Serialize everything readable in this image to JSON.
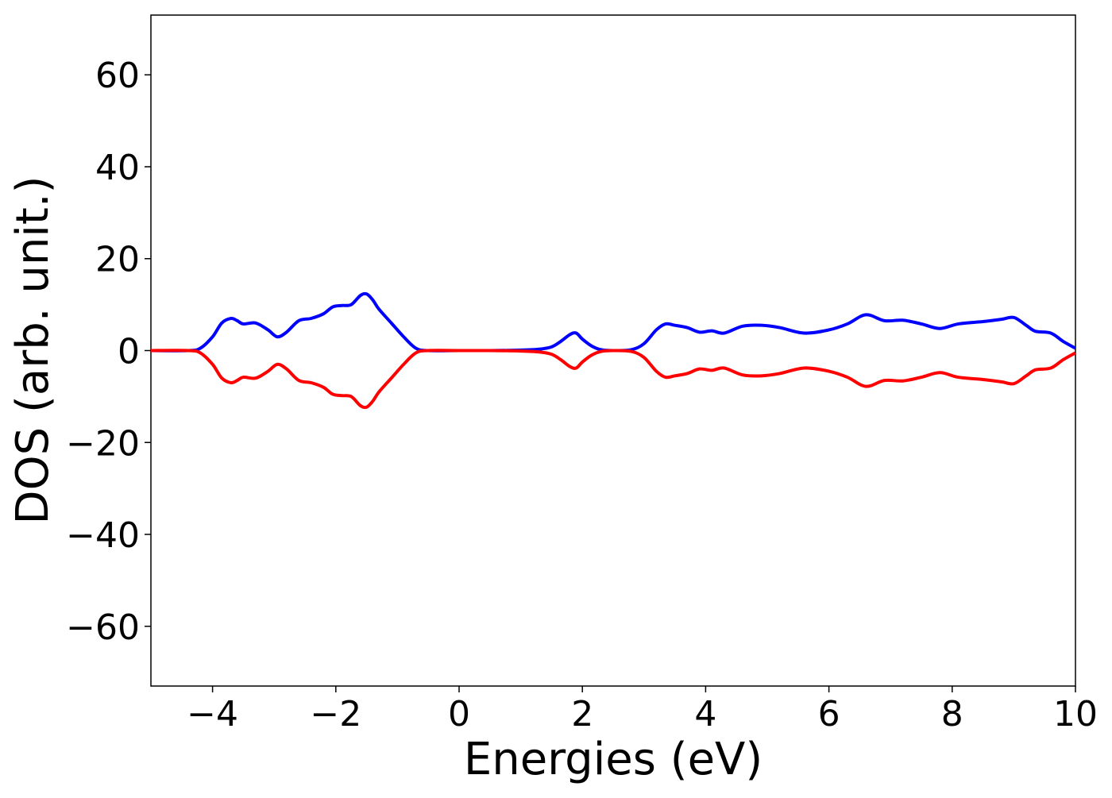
{
  "chart_data": {
    "type": "line",
    "title": "",
    "xlabel": "Energies (eV)",
    "ylabel": "DOS (arb. unit.)",
    "xlim": [
      -5,
      10
    ],
    "ylim": [
      -73,
      73
    ],
    "xticks": [
      -4,
      -2,
      0,
      2,
      4,
      6,
      8,
      10
    ],
    "xtick_labels": [
      "−4",
      "−2",
      "0",
      "2",
      "4",
      "6",
      "8",
      "10"
    ],
    "yticks": [
      60,
      40,
      20,
      0,
      -20,
      -40,
      -60
    ],
    "ytick_labels": [
      "60",
      "40",
      "20",
      "0",
      "−20",
      "−40",
      "−60"
    ],
    "grid": false,
    "legend": "none",
    "series": [
      {
        "color": "#0000ff",
        "x": [
          -5,
          -4.4,
          -4.2,
          -4.0,
          -3.85,
          -3.7,
          -3.6,
          -3.5,
          -3.3,
          -3.1,
          -2.95,
          -2.8,
          -2.6,
          -2.4,
          -2.2,
          -2.05,
          -1.9,
          -1.75,
          -1.6,
          -1.5,
          -1.4,
          -1.3,
          -1.1,
          -0.9,
          -0.7,
          -0.5,
          0,
          0.5,
          1.0,
          1.3,
          1.5,
          1.65,
          1.8,
          1.9,
          2.0,
          2.15,
          2.3,
          2.5,
          2.8,
          3.0,
          3.2,
          3.35,
          3.5,
          3.7,
          3.9,
          4.1,
          4.3,
          4.6,
          4.9,
          5.2,
          5.6,
          6.0,
          6.3,
          6.6,
          6.9,
          7.2,
          7.5,
          7.8,
          8.1,
          8.5,
          8.8,
          9.0,
          9.2,
          9.35,
          9.6,
          9.8,
          10.0
        ],
        "y": [
          0,
          0,
          0.5,
          3,
          6,
          7,
          6.5,
          5.8,
          6,
          4.5,
          3,
          4,
          6.5,
          7,
          8,
          9.5,
          9.8,
          10,
          12,
          12.3,
          11,
          9,
          6,
          3,
          0.5,
          0,
          0,
          0,
          0.1,
          0.3,
          0.8,
          2,
          3.5,
          3.8,
          2.5,
          1,
          0.2,
          0,
          0.2,
          1.5,
          4.5,
          5.8,
          5.5,
          5,
          4,
          4.3,
          3.8,
          5.3,
          5.5,
          5,
          3.8,
          4.5,
          5.8,
          7.8,
          6.5,
          6.6,
          5.8,
          4.8,
          5.8,
          6.3,
          6.8,
          7.2,
          5.5,
          4.2,
          3.8,
          2,
          0.5
        ]
      },
      {
        "color": "#ff0000",
        "x": [
          -5,
          -4.4,
          -4.2,
          -4.0,
          -3.85,
          -3.7,
          -3.6,
          -3.5,
          -3.3,
          -3.1,
          -2.95,
          -2.8,
          -2.6,
          -2.4,
          -2.2,
          -2.05,
          -1.9,
          -1.75,
          -1.6,
          -1.5,
          -1.4,
          -1.3,
          -1.1,
          -0.9,
          -0.7,
          -0.5,
          0,
          0.5,
          1.0,
          1.3,
          1.5,
          1.65,
          1.8,
          1.9,
          2.0,
          2.15,
          2.3,
          2.5,
          2.8,
          3.0,
          3.2,
          3.35,
          3.5,
          3.7,
          3.9,
          4.1,
          4.3,
          4.6,
          4.9,
          5.2,
          5.6,
          6.0,
          6.3,
          6.6,
          6.9,
          7.2,
          7.5,
          7.8,
          8.1,
          8.5,
          8.8,
          9.0,
          9.2,
          9.35,
          9.6,
          9.8,
          10.0
        ],
        "y": [
          0,
          0,
          -0.5,
          -3,
          -6,
          -7,
          -6.5,
          -5.8,
          -6,
          -4.5,
          -3,
          -4,
          -6.5,
          -7,
          -8,
          -9.5,
          -9.8,
          -10,
          -12,
          -12.3,
          -11,
          -9,
          -6,
          -3,
          -0.5,
          0,
          0,
          0,
          -0.1,
          -0.3,
          -0.8,
          -2,
          -3.5,
          -3.8,
          -2.5,
          -1,
          -0.2,
          0,
          -0.2,
          -1.5,
          -4.5,
          -5.8,
          -5.5,
          -5,
          -4,
          -4.3,
          -3.8,
          -5.3,
          -5.5,
          -5,
          -3.8,
          -4.5,
          -5.8,
          -7.8,
          -6.5,
          -6.6,
          -5.8,
          -4.8,
          -5.8,
          -6.3,
          -6.8,
          -7.2,
          -5.5,
          -4.2,
          -3.8,
          -2,
          -0.5
        ]
      }
    ]
  }
}
